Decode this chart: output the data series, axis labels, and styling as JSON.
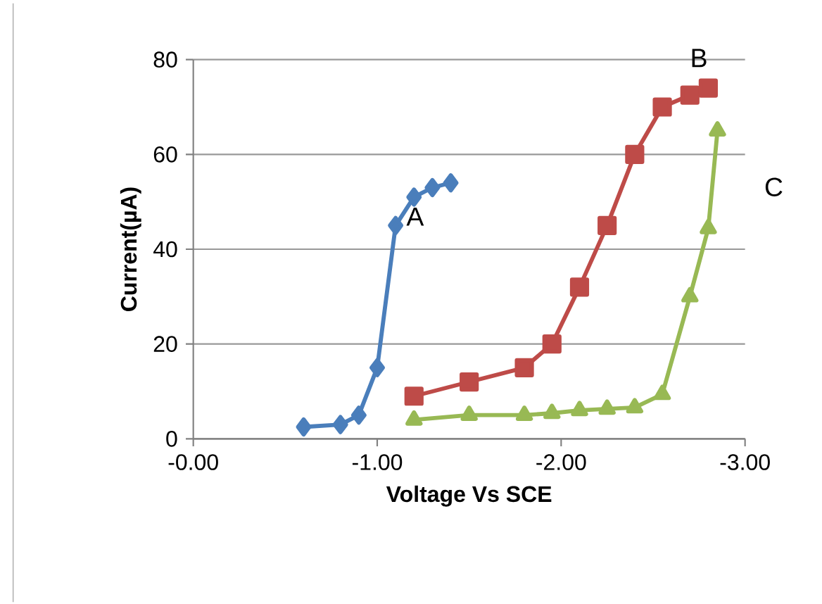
{
  "chart_data": {
    "type": "line",
    "xlabel": "Voltage Vs SCE",
    "ylabel": "Current(µA)",
    "xlim": [
      0,
      -3
    ],
    "xticks": [
      {
        "value": 0,
        "label": "-0.00"
      },
      {
        "value": -1,
        "label": "-1.00"
      },
      {
        "value": -2,
        "label": "-2.00"
      },
      {
        "value": -3,
        "label": "-3.00"
      }
    ],
    "ylim": [
      0,
      80
    ],
    "yticks": [
      0,
      20,
      40,
      60,
      80
    ],
    "grid": "y",
    "legend": false,
    "line_style": "solid",
    "series": [
      {
        "name": "A",
        "color": "#4a7ebb",
        "marker": "diamond",
        "x": [
          -0.6,
          -0.8,
          -0.9,
          -1.0,
          -1.1,
          -1.2,
          -1.3,
          -1.4
        ],
        "values": [
          2.5,
          3,
          5,
          15,
          45,
          51,
          53,
          54
        ]
      },
      {
        "name": "B",
        "color": "#be4b48",
        "marker": "square",
        "x": [
          -1.2,
          -1.5,
          -1.8,
          -1.95,
          -2.1,
          -2.25,
          -2.4,
          -2.55,
          -2.7,
          -2.8
        ],
        "values": [
          9,
          12,
          15,
          20,
          32,
          45,
          60,
          70,
          72.5,
          74
        ]
      },
      {
        "name": "C",
        "color": "#98b954",
        "marker": "triangle",
        "x": [
          -1.2,
          -1.5,
          -1.8,
          -1.95,
          -2.1,
          -2.25,
          -2.4,
          -2.55,
          -2.7,
          -2.8,
          -2.85
        ],
        "values": [
          4,
          5,
          5,
          5.4,
          6,
          6.3,
          6.6,
          9.4,
          30,
          44.4,
          65
        ]
      }
    ]
  }
}
